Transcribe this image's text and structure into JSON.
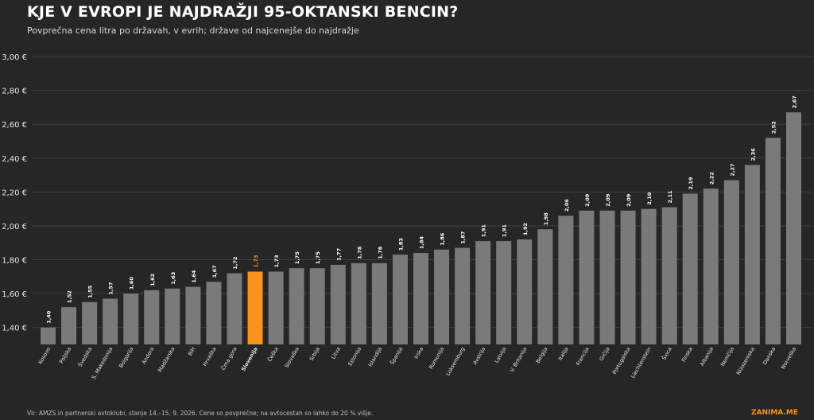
{
  "header": {
    "title": "KJE V EVROPI JE NAJDRAŽJI 95-OKTANSKI BENCIN?",
    "subtitle": "Povprečna cena litra po državah, v evrih; države od najcenejše do najdražje"
  },
  "footer": {
    "source": "Vir: AMZS in partnerski avtoklubi, stanje 14.–15. 9. 2026. Cene so povprečne; na avtocestah so lahko do 20 % višje.",
    "brand": "ZANIMA.ME"
  },
  "colors": {
    "background": "#262626",
    "bar": "#7a7a7a",
    "highlight": "#f7931e",
    "grid": "#404040",
    "text": "#ffffff"
  },
  "chart_data": {
    "type": "bar",
    "ylim": [
      1.3,
      3.0
    ],
    "yticks": [
      "1,40 €",
      "1,60 €",
      "1,80 €",
      "2,00 €",
      "2,20 €",
      "2,40 €",
      "2,60 €",
      "2,80 €",
      "3,00 €"
    ],
    "ytick_values": [
      1.4,
      1.6,
      1.8,
      2.0,
      2.2,
      2.4,
      2.6,
      2.8,
      3.0
    ],
    "grid": true,
    "highlight_category": "Slovenija",
    "categories": [
      "Kosovo",
      "Poljska",
      "Švedska",
      "S. Makedonija",
      "Bolgarija",
      "Andora",
      "Madžarska",
      "BiH",
      "Hrvaška",
      "Črna gora",
      "Slovenija",
      "Češka",
      "Slovaška",
      "Srbija",
      "Litva",
      "Estonija",
      "Islandija",
      "Španija",
      "Irska",
      "Romunija",
      "Luksemburg",
      "Avstrija",
      "Latvija",
      "V. Britanija",
      "Belgija",
      "Italija",
      "Francija",
      "Grčija",
      "Portugalska",
      "Liechtenstein",
      "Švica",
      "Finska",
      "Albanija",
      "Nemčija",
      "Nizozemska",
      "Danska",
      "Norveška"
    ],
    "values": [
      1.4,
      1.52,
      1.55,
      1.57,
      1.6,
      1.62,
      1.63,
      1.64,
      1.67,
      1.72,
      1.73,
      1.73,
      1.75,
      1.75,
      1.77,
      1.78,
      1.78,
      1.83,
      1.84,
      1.86,
      1.87,
      1.91,
      1.91,
      1.92,
      1.98,
      2.06,
      2.09,
      2.09,
      2.09,
      2.1,
      2.11,
      2.19,
      2.22,
      2.27,
      2.36,
      2.52,
      2.67
    ],
    "value_labels": [
      "1,40",
      "1,52",
      "1,55",
      "1,57",
      "1,60",
      "1,62",
      "1,63",
      "1,64",
      "1,67",
      "1,72",
      "1,73",
      "1,73",
      "1,75",
      "1,75",
      "1,77",
      "1,78",
      "1,78",
      "1,83",
      "1,84",
      "1,86",
      "1,87",
      "1,91",
      "1,91",
      "1,92",
      "1,98",
      "2,06",
      "2,09",
      "2,09",
      "2,09",
      "2,10",
      "2,11",
      "2,19",
      "2,22",
      "2,27",
      "2,36",
      "2,52",
      "2,67"
    ]
  }
}
